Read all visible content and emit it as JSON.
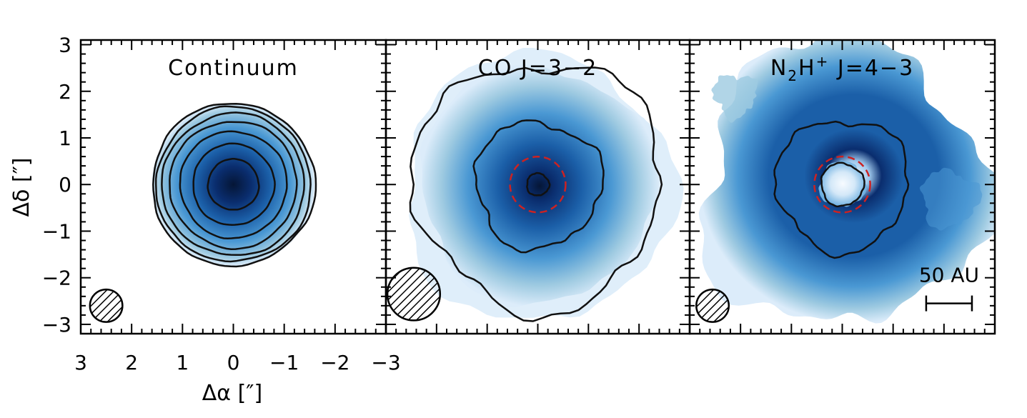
{
  "chart_data": {
    "type": "contour-image-panels",
    "xlabel": "Δα [″]",
    "ylabel": "Δδ [″]",
    "xlim": [
      3,
      -3
    ],
    "ylim": [
      -3.2,
      3.1
    ],
    "x_ticks": [
      "3",
      "2",
      "1",
      "0",
      "−1",
      "−2",
      "−3"
    ],
    "x_tick_values": [
      3,
      2,
      1,
      0,
      -1,
      -2,
      -3
    ],
    "y_ticks": [
      "3",
      "2",
      "1",
      "0",
      "−1",
      "−2",
      "−3"
    ],
    "y_tick_values": [
      3,
      2,
      1,
      0,
      -1,
      -2,
      -3
    ],
    "colormap": [
      "#ffffff",
      "#dcecfa",
      "#9ecae1",
      "#4a98d3",
      "#1b5fa8",
      "#0a2d6e",
      "#051636"
    ],
    "contour_color": "#111111",
    "dashed_color": "#cc2222",
    "panels": [
      {
        "title": "Continuum",
        "contour_radii": [
          0.5,
          0.8,
          1.05,
          1.25,
          1.4,
          1.52,
          1.6
        ],
        "emission_radius": 1.6,
        "beam": {
          "x": 2.5,
          "y": -2.6,
          "r": 0.32
        }
      },
      {
        "title": "CO J=3−2",
        "contour_radii": [
          0.22,
          1.25,
          2.45
        ],
        "dashed_ring_radius": 0.55,
        "emission_radius": 2.6,
        "beam": {
          "x": 2.45,
          "y": -2.35,
          "r": 0.52
        }
      },
      {
        "title": "N₂H⁺ J=4−3",
        "title_parts": {
          "n": "N",
          "sub": "2",
          "h": "H",
          "sup": "+",
          "rest": " J=4−3"
        },
        "contour_radii": [
          0.42,
          1.3
        ],
        "dashed_ring_radius": 0.55,
        "central_hole_radius": 0.45,
        "emission_radius": 2.8,
        "beam": {
          "x": 2.55,
          "y": -2.6,
          "r": 0.32
        },
        "scale_bar": {
          "label": "50 AU",
          "length_arcsec": 0.9
        }
      }
    ]
  }
}
